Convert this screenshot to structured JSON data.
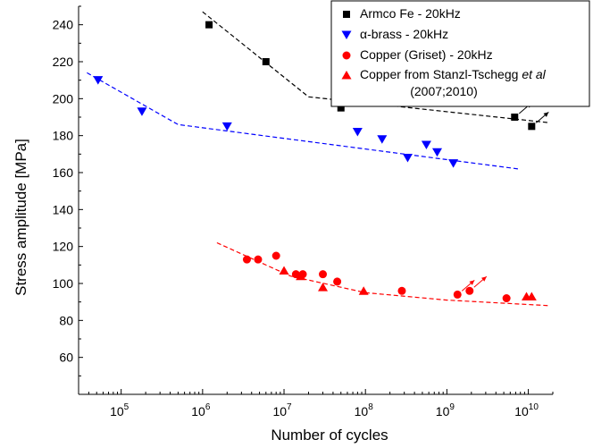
{
  "chart_data": {
    "type": "scatter",
    "xlabel": "Number of cycles",
    "ylabel": "Stress amplitude [MPa]",
    "x_scale": "log",
    "xlim": [
      30000,
      20000000000
    ],
    "ylim": [
      40,
      250
    ],
    "x_ticks": [
      {
        "value": 100000,
        "base": "10",
        "exp": "5"
      },
      {
        "value": 1000000,
        "base": "10",
        "exp": "6"
      },
      {
        "value": 10000000,
        "base": "10",
        "exp": "7"
      },
      {
        "value": 100000000,
        "base": "10",
        "exp": "8"
      },
      {
        "value": 1000000000,
        "base": "10",
        "exp": "9"
      },
      {
        "value": 10000000000,
        "base": "10",
        "exp": "10"
      }
    ],
    "y_ticks": [
      60,
      80,
      100,
      120,
      140,
      160,
      180,
      200,
      220,
      240
    ],
    "grid": false,
    "legend_position": "top-right",
    "legend": [
      {
        "marker": "square",
        "color": "#000000",
        "parts": [
          {
            "text": "Armco Fe - 20kHz",
            "italic": false
          }
        ]
      },
      {
        "marker": "triangle-down",
        "color": "#0000ff",
        "parts": [
          {
            "text": "α-brass - 20kHz",
            "italic": false
          }
        ]
      },
      {
        "marker": "circle",
        "color": "#ff0000",
        "parts": [
          {
            "text": "Copper (Griset) - 20kHz",
            "italic": false
          }
        ]
      },
      {
        "marker": "triangle-up",
        "color": "#ff0000",
        "parts": [
          {
            "text": "Copper from Stanzl-Tschegg ",
            "italic": false
          },
          {
            "text": "et al",
            "italic": true
          }
        ]
      },
      {
        "marker": "none",
        "color": "#000000",
        "parts": [
          {
            "text": "(2007;2010)",
            "italic": false
          }
        ]
      }
    ],
    "series": [
      {
        "name": "Armco Fe - 20kHz",
        "marker": "square",
        "color": "#000000",
        "points": [
          {
            "x": 1200000,
            "y": 240
          },
          {
            "x": 6000000,
            "y": 220
          },
          {
            "x": 50000000,
            "y": 195
          },
          {
            "x": 110000000,
            "y": 200
          },
          {
            "x": 1200000000,
            "y": 200
          },
          {
            "x": 6800000000,
            "y": 190,
            "runout": true
          },
          {
            "x": 11000000000,
            "y": 185,
            "runout": true
          }
        ],
        "trend": [
          {
            "x": 1000000,
            "y": 247
          },
          {
            "x": 20000000,
            "y": 201
          },
          {
            "x": 18000000000,
            "y": 187
          }
        ]
      },
      {
        "name": "α-brass - 20kHz",
        "marker": "triangle-down",
        "color": "#0000ff",
        "points": [
          {
            "x": 52000,
            "y": 210
          },
          {
            "x": 180000,
            "y": 193
          },
          {
            "x": 2000000,
            "y": 185
          },
          {
            "x": 80000000,
            "y": 182
          },
          {
            "x": 160000000,
            "y": 178
          },
          {
            "x": 330000000,
            "y": 168
          },
          {
            "x": 560000000,
            "y": 175
          },
          {
            "x": 760000000,
            "y": 171
          },
          {
            "x": 1200000000,
            "y": 165
          }
        ],
        "trend": [
          {
            "x": 38000,
            "y": 214
          },
          {
            "x": 500000,
            "y": 186
          },
          {
            "x": 7500000000,
            "y": 162
          }
        ]
      },
      {
        "name": "Copper (Griset) - 20kHz",
        "marker": "circle",
        "color": "#ff0000",
        "points": [
          {
            "x": 3500000,
            "y": 113
          },
          {
            "x": 4800000,
            "y": 113
          },
          {
            "x": 8000000,
            "y": 115
          },
          {
            "x": 14000000,
            "y": 105
          },
          {
            "x": 17000000,
            "y": 105
          },
          {
            "x": 30000000,
            "y": 105
          },
          {
            "x": 45000000,
            "y": 101
          },
          {
            "x": 280000000,
            "y": 96
          },
          {
            "x": 1350000000,
            "y": 94,
            "runout": true
          },
          {
            "x": 1900000000,
            "y": 96,
            "runout": true
          },
          {
            "x": 5400000000,
            "y": 92
          }
        ]
      },
      {
        "name": "Copper from Stanzl-Tschegg et al (2007;2010)",
        "marker": "triangle-up",
        "color": "#ff0000",
        "points": [
          {
            "x": 10000000,
            "y": 107
          },
          {
            "x": 16000000,
            "y": 104
          },
          {
            "x": 30000000,
            "y": 98
          },
          {
            "x": 95000000,
            "y": 96
          },
          {
            "x": 9500000000,
            "y": 93
          },
          {
            "x": 11000000000,
            "y": 93
          }
        ],
        "trend": [
          {
            "x": 1500000,
            "y": 122
          },
          {
            "x": 12000000,
            "y": 104
          },
          {
            "x": 100000000,
            "y": 95
          },
          {
            "x": 1000000000,
            "y": 91
          },
          {
            "x": 18000000000,
            "y": 88
          }
        ]
      }
    ]
  }
}
